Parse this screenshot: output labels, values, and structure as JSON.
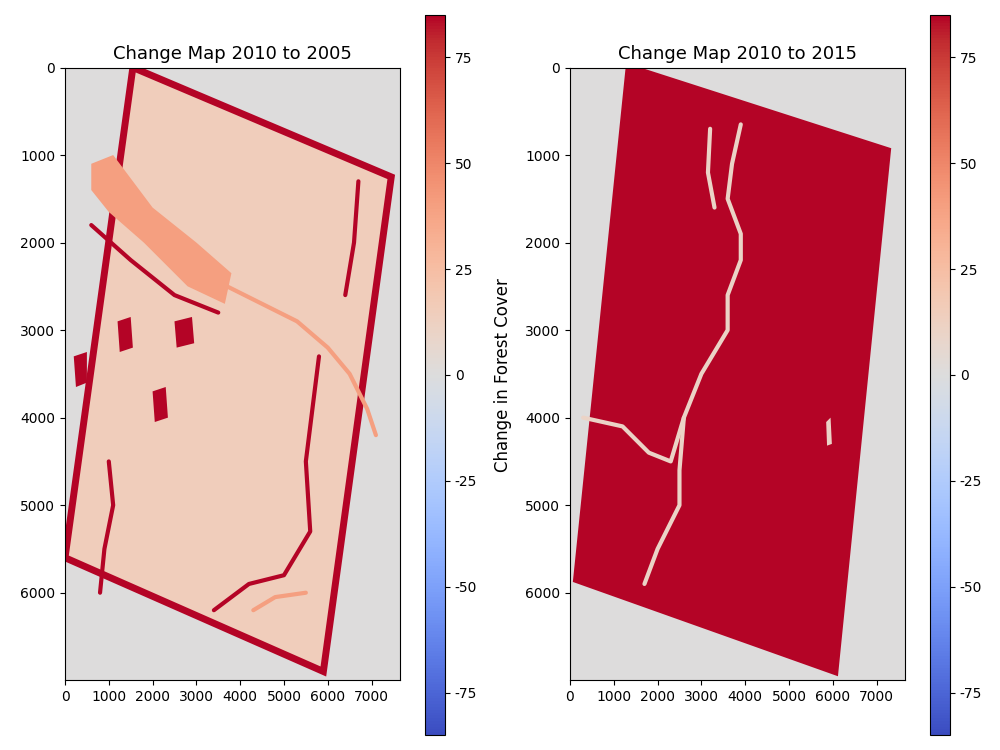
{
  "chart_data": [
    {
      "type": "heatmap",
      "title": "Change Map 2010 to 2005",
      "xlim": [
        0,
        7650
      ],
      "ylim": [
        7000,
        0
      ],
      "xticks": [
        0,
        1000,
        2000,
        3000,
        4000,
        5000,
        6000,
        7000
      ],
      "yticks": [
        0,
        1000,
        2000,
        3000,
        4000,
        5000,
        6000
      ],
      "background_value": 0,
      "footprint": {
        "value": 15,
        "border_value": 85,
        "corners": [
          [
            1550,
            0
          ],
          [
            7450,
            1250
          ],
          [
            5900,
            6900
          ],
          [
            0,
            5600
          ]
        ]
      },
      "regions": [
        {
          "value": 40,
          "polygon": [
            [
              600,
              1100
            ],
            [
              1100,
              1000
            ],
            [
              2000,
              1600
            ],
            [
              3000,
              2000
            ],
            [
              3800,
              2350
            ],
            [
              3650,
              2700
            ],
            [
              2800,
              2500
            ],
            [
              1800,
              2000
            ],
            [
              1000,
              1650
            ],
            [
              600,
              1400
            ]
          ]
        },
        {
          "value": 85,
          "polygon": [
            [
              1200,
              2900
            ],
            [
              1500,
              2850
            ],
            [
              1550,
              3200
            ],
            [
              1250,
              3250
            ]
          ]
        },
        {
          "value": 85,
          "polygon": [
            [
              2000,
              3700
            ],
            [
              2300,
              3650
            ],
            [
              2350,
              4000
            ],
            [
              2050,
              4050
            ]
          ]
        },
        {
          "value": 85,
          "polygon": [
            [
              200,
              3300
            ],
            [
              500,
              3250
            ],
            [
              500,
              3600
            ],
            [
              250,
              3650
            ]
          ]
        },
        {
          "value": 85,
          "polygon": [
            [
              2500,
              2900
            ],
            [
              2900,
              2850
            ],
            [
              2950,
              3150
            ],
            [
              2550,
              3200
            ]
          ]
        }
      ],
      "lines": [
        {
          "value": 40,
          "points": [
            [
              3700,
              2500
            ],
            [
              4500,
              2700
            ],
            [
              5300,
              2900
            ],
            [
              6000,
              3200
            ],
            [
              6500,
              3500
            ],
            [
              6900,
              3900
            ],
            [
              7100,
              4200
            ]
          ]
        },
        {
          "value": 85,
          "points": [
            [
              600,
              1800
            ],
            [
              1500,
              2200
            ],
            [
              2500,
              2600
            ],
            [
              3500,
              2800
            ]
          ]
        },
        {
          "value": 85,
          "points": [
            [
              5800,
              3300
            ],
            [
              5500,
              4500
            ],
            [
              5600,
              5300
            ],
            [
              5000,
              5800
            ],
            [
              4200,
              5900
            ],
            [
              3400,
              6200
            ]
          ]
        },
        {
          "value": 85,
          "points": [
            [
              1000,
              4500
            ],
            [
              1100,
              5000
            ],
            [
              900,
              5500
            ],
            [
              800,
              6000
            ]
          ]
        },
        {
          "value": 85,
          "points": [
            [
              6700,
              1300
            ],
            [
              6600,
              2000
            ],
            [
              6400,
              2600
            ]
          ]
        },
        {
          "value": 40,
          "points": [
            [
              4300,
              6200
            ],
            [
              4800,
              6050
            ],
            [
              5500,
              6000
            ]
          ]
        }
      ],
      "colorbar": {
        "range": [
          -85,
          85
        ],
        "ticks": [
          -75,
          -50,
          -25,
          0,
          25,
          50,
          75
        ],
        "label": "Change in Forest Cover"
      }
    },
    {
      "type": "heatmap",
      "title": "Change Map 2010 to 2015",
      "xlim": [
        0,
        7650
      ],
      "ylim": [
        7000,
        0
      ],
      "xticks": [
        0,
        1000,
        2000,
        3000,
        4000,
        5000,
        6000,
        7000
      ],
      "yticks": [
        0,
        1000,
        2000,
        3000,
        4000,
        5000,
        6000
      ],
      "background_value": 0,
      "footprint": {
        "value": 85,
        "border_value": 85,
        "corners": [
          [
            1350,
            0
          ],
          [
            7250,
            950
          ],
          [
            6050,
            6900
          ],
          [
            150,
            5850
          ]
        ]
      },
      "regions": [
        {
          "value": 10,
          "polygon": [
            [
              5850,
              4050
            ],
            [
              5950,
              4000
            ],
            [
              5980,
              4300
            ],
            [
              5870,
              4320
            ]
          ]
        }
      ],
      "lines": [
        {
          "value": 10,
          "points": [
            [
              3900,
              650
            ],
            [
              3700,
              1100
            ],
            [
              3600,
              1500
            ],
            [
              3900,
              1900
            ],
            [
              3900,
              2200
            ],
            [
              3600,
              2600
            ],
            [
              3600,
              3000
            ],
            [
              3000,
              3500
            ],
            [
              2600,
              4000
            ],
            [
              2300,
              4500
            ],
            [
              1800,
              4400
            ],
            [
              1200,
              4100
            ],
            [
              300,
              4000
            ]
          ]
        },
        {
          "value": 10,
          "points": [
            [
              2600,
              4000
            ],
            [
              2500,
              4600
            ],
            [
              2500,
              5000
            ],
            [
              2000,
              5500
            ],
            [
              1700,
              5900
            ]
          ]
        },
        {
          "value": 10,
          "points": [
            [
              3200,
              700
            ],
            [
              3150,
              1200
            ],
            [
              3300,
              1600
            ]
          ]
        }
      ],
      "colorbar": {
        "range": [
          -85,
          85
        ],
        "ticks": [
          -75,
          -50,
          -25,
          0,
          25,
          50,
          75
        ]
      }
    }
  ]
}
